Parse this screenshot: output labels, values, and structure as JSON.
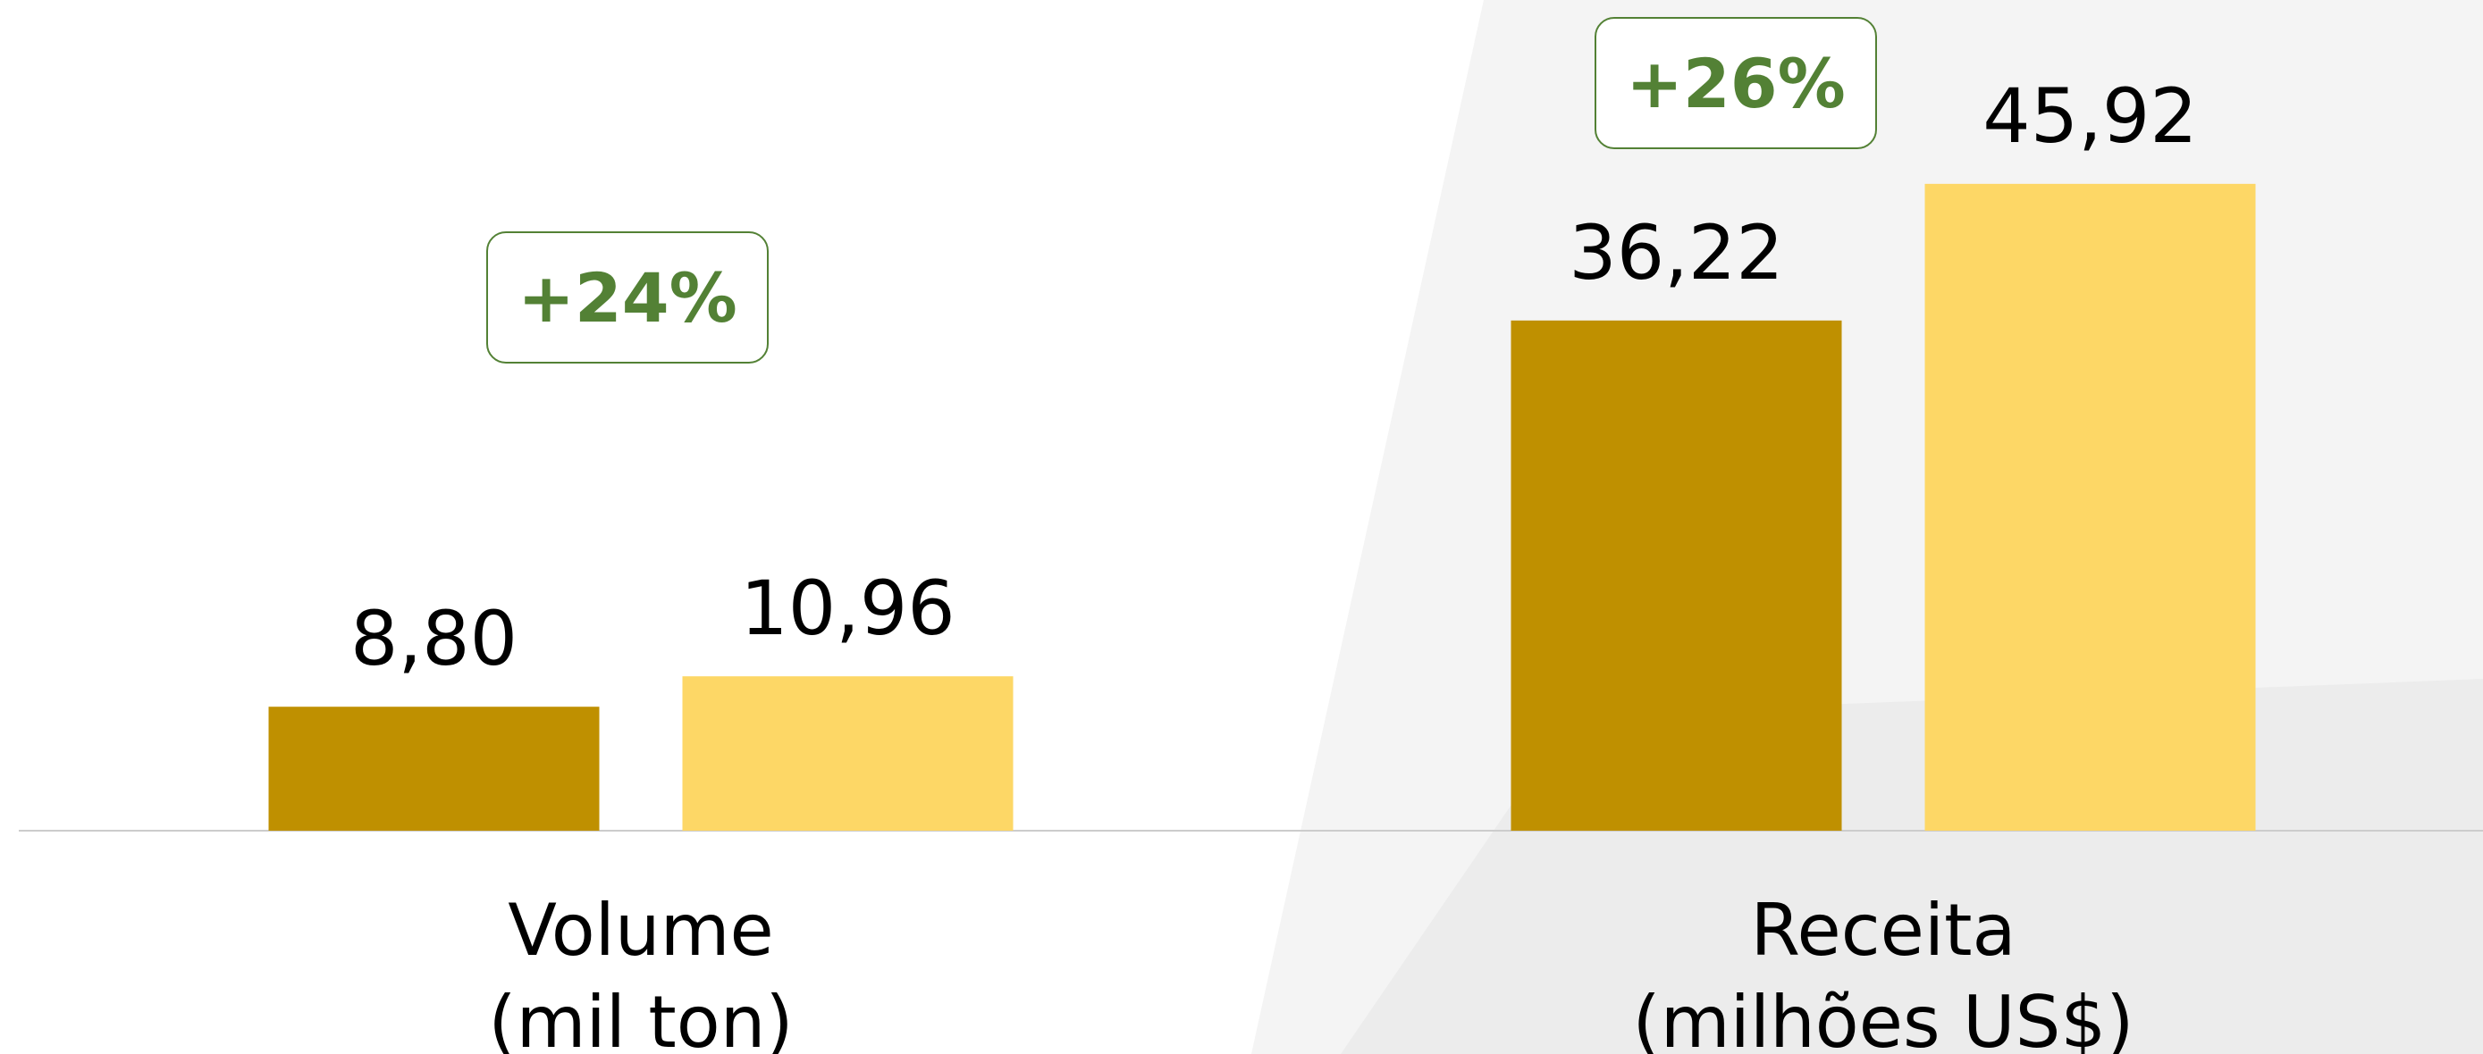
{
  "chart_data": {
    "type": "bar",
    "categories": [
      "Volume\n(mil ton)",
      "Receita\n(milhões US$)"
    ],
    "series": [
      {
        "color": "#bf9000",
        "values": [
          8.8,
          36.22
        ],
        "value_labels": [
          "8,80",
          "36,22"
        ]
      },
      {
        "color": "#fdd766",
        "values": [
          10.96,
          45.92
        ],
        "value_labels": [
          "10,96",
          "45,92"
        ]
      }
    ],
    "annotations": [
      "+24%",
      "+26%"
    ]
  }
}
